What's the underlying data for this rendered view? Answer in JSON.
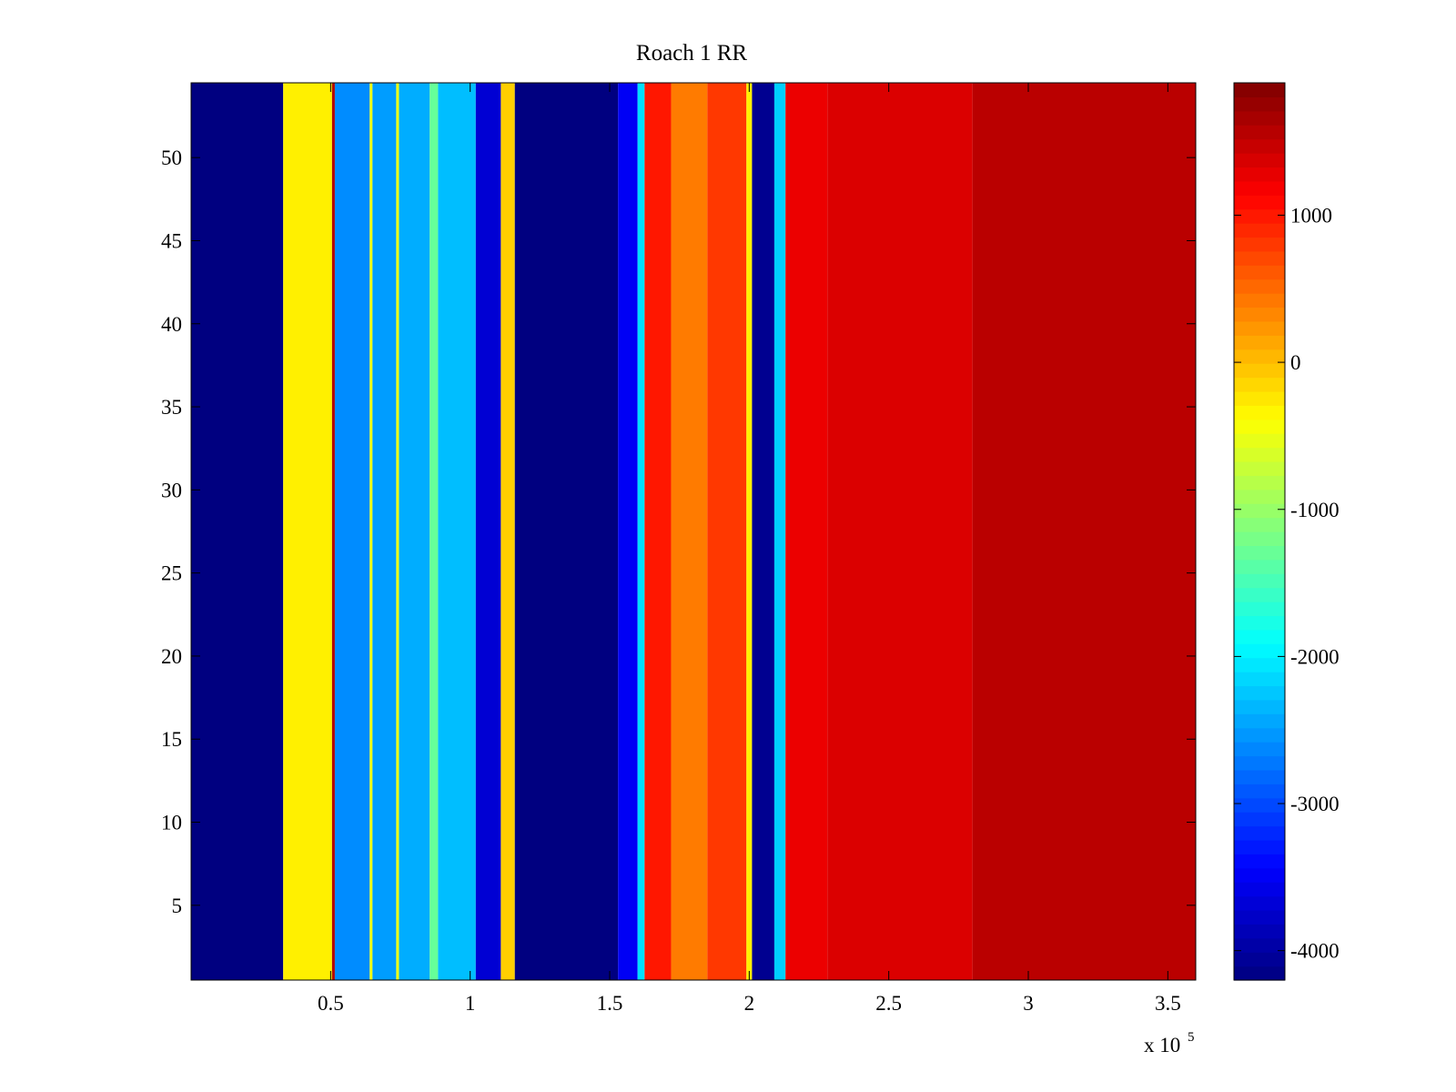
{
  "chart_data": {
    "type": "heatmap",
    "title": "Roach 1 RR",
    "xlabel": "",
    "ylabel": "",
    "x_exponent_label": {
      "prefix": "x 10",
      "exponent": "5"
    },
    "xlim": [
      0,
      360000
    ],
    "ylim": [
      0.5,
      54.5
    ],
    "rows": 54,
    "x_ticks": [
      {
        "value": 0.5,
        "label": "0.5"
      },
      {
        "value": 1,
        "label": "1"
      },
      {
        "value": 1.5,
        "label": "1.5"
      },
      {
        "value": 2,
        "label": "2"
      },
      {
        "value": 2.5,
        "label": "2.5"
      },
      {
        "value": 3,
        "label": "3"
      },
      {
        "value": 3.5,
        "label": "3.5"
      }
    ],
    "y_ticks": [
      {
        "value": 5,
        "label": "5"
      },
      {
        "value": 10,
        "label": "10"
      },
      {
        "value": 15,
        "label": "15"
      },
      {
        "value": 20,
        "label": "20"
      },
      {
        "value": 25,
        "label": "25"
      },
      {
        "value": 30,
        "label": "30"
      },
      {
        "value": 35,
        "label": "35"
      },
      {
        "value": 40,
        "label": "40"
      },
      {
        "value": 45,
        "label": "45"
      },
      {
        "value": 50,
        "label": "50"
      }
    ],
    "colorbar": {
      "colormap": "jet",
      "clim": [
        -4200,
        1900
      ],
      "ticks": [
        {
          "value": 1000,
          "label": "1000"
        },
        {
          "value": 0,
          "label": "0"
        },
        {
          "value": -1000,
          "label": "-1000"
        },
        {
          "value": -2000,
          "label": "-2000"
        },
        {
          "value": -3000,
          "label": "-3000"
        },
        {
          "value": -4000,
          "label": "-4000"
        }
      ]
    },
    "bands": [
      {
        "x": [
          0,
          33000
        ],
        "value": -4200
      },
      {
        "x": [
          33000,
          50500
        ],
        "value": -300
      },
      {
        "x": [
          50500,
          51500
        ],
        "value": 1600
      },
      {
        "x": [
          51500,
          64000
        ],
        "value": -2600
      },
      {
        "x": [
          64000,
          65000
        ],
        "value": -500
      },
      {
        "x": [
          65000,
          73500
        ],
        "value": -2500
      },
      {
        "x": [
          73500,
          74500
        ],
        "value": -500
      },
      {
        "x": [
          74500,
          85500
        ],
        "value": -2400
      },
      {
        "x": [
          85500,
          88500
        ],
        "value": -1300
      },
      {
        "x": [
          88500,
          102000
        ],
        "value": -2300
      },
      {
        "x": [
          102000,
          111000
        ],
        "value": -3700
      },
      {
        "x": [
          111000,
          116000
        ],
        "value": -100
      },
      {
        "x": [
          116000,
          153000
        ],
        "value": -4200
      },
      {
        "x": [
          153000,
          160000
        ],
        "value": -3500
      },
      {
        "x": [
          160000,
          162500
        ],
        "value": -2100
      },
      {
        "x": [
          162500,
          172000
        ],
        "value": 1000
      },
      {
        "x": [
          172000,
          185000
        ],
        "value": 400
      },
      {
        "x": [
          185000,
          199000
        ],
        "value": 800
      },
      {
        "x": [
          199000,
          201000
        ],
        "value": -300
      },
      {
        "x": [
          201000,
          209000
        ],
        "value": -4100
      },
      {
        "x": [
          209000,
          213000
        ],
        "value": -2200
      },
      {
        "x": [
          213000,
          228000
        ],
        "value": 1250
      },
      {
        "x": [
          228000,
          280000
        ],
        "value": 1350
      },
      {
        "x": [
          280000,
          360000
        ],
        "value": 1550
      }
    ]
  },
  "colors": {
    "background": "#ffffff",
    "axis": "#000000"
  }
}
